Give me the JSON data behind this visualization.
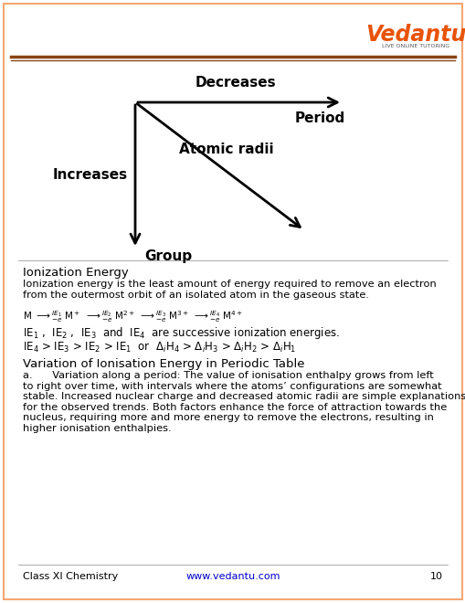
{
  "bg_color": "#FFFFFF",
  "border_color": "#F5A673",
  "header_line_color": "#8B4513",
  "arrow_color": "#000000",
  "vedantu_orange": "#E8530A",
  "decreases_label": "Decreases",
  "increases_label": "Increases",
  "period_label": "Period",
  "group_label": "Group",
  "atomic_radii_label": "Atomic radii",
  "ionization_energy_title": "Ionization Energy",
  "variation_title": "Variation of Ionisation Energy in Periodic Table",
  "footer_left": "Class XI Chemistry",
  "footer_url": "www.vedantu.com",
  "footer_page": "10",
  "watermark_color": "#F5C9A8"
}
